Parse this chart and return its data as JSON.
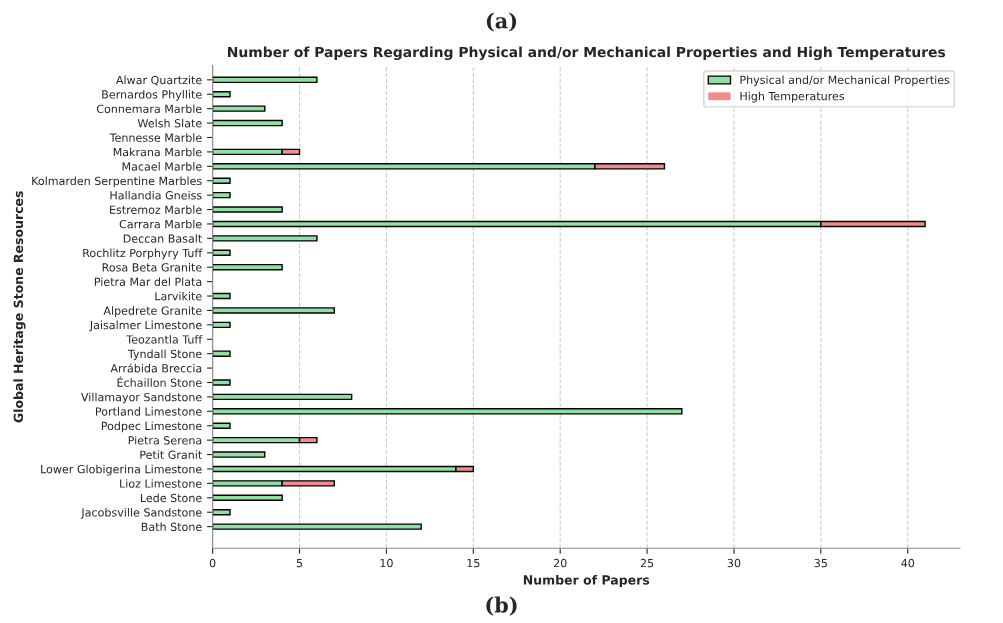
{
  "chart_data": {
    "type": "bar",
    "orientation": "horizontal",
    "stacked": true,
    "title": "Number of Papers Regarding Physical and/or Mechanical Properties and High Temperatures",
    "xlabel": "Number of Papers",
    "ylabel": "Global Heritage Stone Resources",
    "annotations": [
      "(a)",
      "(b)"
    ],
    "categories": [
      "Alwar Quartzite",
      "Bernardos Phyllite",
      "Connemara Marble",
      "Welsh Slate",
      "Tennesse Marble",
      "Makrana Marble",
      "Macael Marble",
      "Kolmarden Serpentine Marbles",
      "Hallandia Gneiss",
      "Estremoz Marble",
      "Carrara Marble",
      "Deccan Basalt",
      "Rochlitz Porphyry Tuff",
      "Rosa Beta Granite",
      "Pietra Mar del Plata",
      "Larvikite",
      "Alpedrete Granite",
      "Jaisalmer Limestone",
      "Teozantla Tuff",
      "Tyndall Stone",
      "Arrábida Breccia",
      "Échaillon Stone",
      "Villamayor Sandstone",
      "Portland Limestone",
      "Podpec Limestone",
      "Pietra Serena",
      "Petit Granit",
      "Lower Globigerina Limestone",
      "Lioz Limestone",
      "Lede Stone",
      "Jacobsville Sandstone",
      "Bath Stone"
    ],
    "series": [
      {
        "name": "Physical and/or Mechanical Properties",
        "color": "#90e0a4",
        "values": [
          6,
          1,
          3,
          4,
          0,
          4,
          22,
          1,
          1,
          4,
          35,
          6,
          1,
          4,
          0,
          1,
          7,
          1,
          0,
          1,
          0,
          1,
          8,
          27,
          1,
          5,
          3,
          14,
          4,
          4,
          1,
          12
        ]
      },
      {
        "name": "High Temperatures",
        "color": "#f28b8b",
        "values": [
          0,
          0,
          0,
          0,
          0,
          1,
          4,
          0,
          0,
          0,
          6,
          0,
          0,
          0,
          0,
          0,
          0,
          0,
          0,
          0,
          0,
          0,
          0,
          0,
          0,
          1,
          0,
          1,
          3,
          0,
          0,
          0
        ]
      }
    ],
    "xlim": [
      0,
      43
    ],
    "xticks": [
      0,
      5,
      10,
      15,
      20,
      25,
      30,
      35,
      40
    ],
    "grid": "x",
    "legend": "top right"
  }
}
